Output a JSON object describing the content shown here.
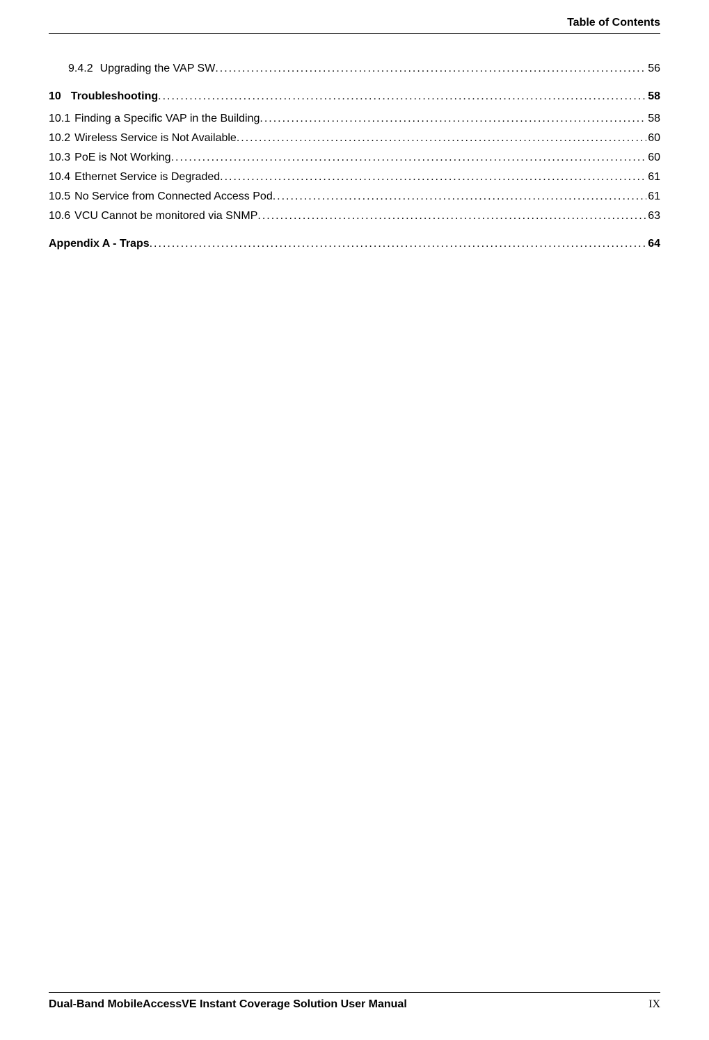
{
  "header": {
    "title": "Table of Contents"
  },
  "toc": {
    "entries": [
      {
        "level": "level3",
        "num": "9.4.2",
        "text": "Upgrading the VAP SW",
        "page": "56"
      },
      {
        "level": "section-head",
        "num": "10",
        "text": "Troubleshooting",
        "page": "58"
      },
      {
        "level": "level2",
        "num": "10.1",
        "text": "Finding a Specific VAP in the Building",
        "page": "58"
      },
      {
        "level": "level2",
        "num": "10.2",
        "text": "Wireless Service is Not Available",
        "page": "60"
      },
      {
        "level": "level2",
        "num": "10.3",
        "text": "PoE is Not Working",
        "page": "60"
      },
      {
        "level": "level2",
        "num": "10.4",
        "text": "Ethernet Service is Degraded",
        "page": "61"
      },
      {
        "level": "level2",
        "num": "10.5",
        "text": "No Service from Connected Access Pod",
        "page": "61"
      },
      {
        "level": "level2",
        "num": "10.6",
        "text": "VCU Cannot be monitored via SNMP",
        "page": "63"
      },
      {
        "level": "appendix",
        "num": "",
        "text": "Appendix A - Traps",
        "page": "64"
      }
    ]
  },
  "footer": {
    "title": "Dual-Band MobileAccessVE Instant Coverage Solution User Manual",
    "page": "IX"
  },
  "colors": {
    "text": "#000000",
    "background": "#ffffff",
    "rule": "#000000"
  },
  "typography": {
    "body_fontsize": 16,
    "header_fontsize": 16,
    "footer_fontsize": 16,
    "font_family": "Verdana"
  }
}
